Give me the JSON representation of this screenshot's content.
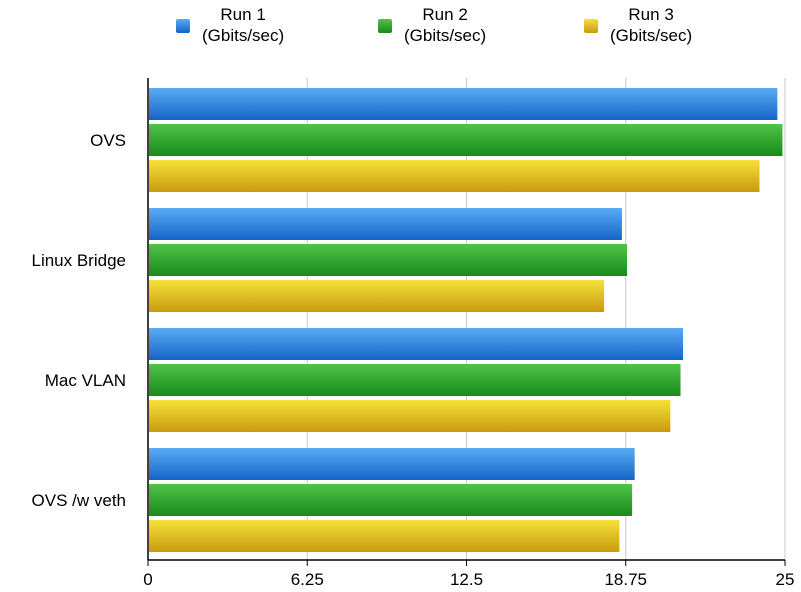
{
  "chart_data": {
    "type": "bar",
    "orientation": "horizontal",
    "categories": [
      "OVS",
      "Linux Bridge",
      "Mac VLAN",
      "OVS /w veth"
    ],
    "series": [
      {
        "name": "Run 1",
        "unit": "(Gbits/sec)",
        "values": [
          24.7,
          18.6,
          21.0,
          19.1
        ],
        "color_top": "#5aabf5",
        "color_bottom": "#1565c8"
      },
      {
        "name": "Run 2",
        "unit": "(Gbits/sec)",
        "values": [
          24.9,
          18.8,
          20.9,
          19.0
        ],
        "color_top": "#52c24a",
        "color_bottom": "#178a1a"
      },
      {
        "name": "Run 3",
        "unit": "(Gbits/sec)",
        "values": [
          24.0,
          17.9,
          20.5,
          18.5
        ],
        "color_top": "#f7e03a",
        "color_bottom": "#c79a10"
      }
    ],
    "xlim": [
      0,
      25
    ],
    "xticks": [
      "0",
      "6.25",
      "12.5",
      "18.75",
      "25"
    ],
    "grid": true,
    "legend_position": "top"
  }
}
